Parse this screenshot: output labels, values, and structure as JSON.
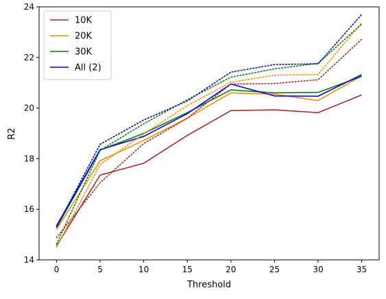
{
  "chart_data": {
    "type": "line",
    "xlabel": "Threshold",
    "ylabel": "R2",
    "xlim": [
      -2,
      37
    ],
    "ylim": [
      14,
      24
    ],
    "x": [
      0,
      5,
      10,
      15,
      20,
      25,
      30,
      35
    ],
    "xticks": [
      0,
      5,
      10,
      15,
      20,
      25,
      30,
      35
    ],
    "yticks": [
      14,
      16,
      18,
      20,
      22,
      24
    ],
    "grid": false,
    "legend_position": "top-left",
    "series": [
      {
        "name": "10K",
        "color": "#a52a2a",
        "style": "solid",
        "values": [
          14.55,
          17.35,
          17.82,
          18.92,
          19.9,
          19.93,
          19.82,
          20.52
        ]
      },
      {
        "name": "20K",
        "color": "#ff8c00",
        "style": "solid",
        "values": [
          15.2,
          17.92,
          18.72,
          19.6,
          20.6,
          20.55,
          20.3,
          21.27
        ]
      },
      {
        "name": "30K",
        "color": "#008000",
        "style": "solid",
        "values": [
          15.27,
          18.34,
          19.0,
          19.82,
          20.72,
          20.6,
          20.62,
          21.25
        ]
      },
      {
        "name": "All (2)",
        "color": "#0000ff",
        "style": "solid",
        "values": [
          15.35,
          18.36,
          18.88,
          19.78,
          20.95,
          20.48,
          20.47,
          21.32
        ]
      },
      {
        "color": "#a52a2a",
        "style": "dotted",
        "values": [
          14.88,
          17.05,
          18.6,
          19.6,
          20.95,
          20.97,
          21.12,
          22.72
        ]
      },
      {
        "color": "#ff8c00",
        "style": "dotted",
        "values": [
          14.5,
          17.77,
          18.98,
          20.1,
          21.02,
          21.3,
          21.33,
          23.37
        ]
      },
      {
        "color": "#008000",
        "style": "dotted",
        "values": [
          14.63,
          18.33,
          19.38,
          20.33,
          21.22,
          21.55,
          21.77,
          23.32
        ]
      },
      {
        "color": "#0000ff",
        "style": "dotted",
        "values": [
          15.3,
          18.57,
          19.53,
          20.28,
          21.42,
          21.72,
          21.75,
          23.7
        ]
      }
    ]
  }
}
